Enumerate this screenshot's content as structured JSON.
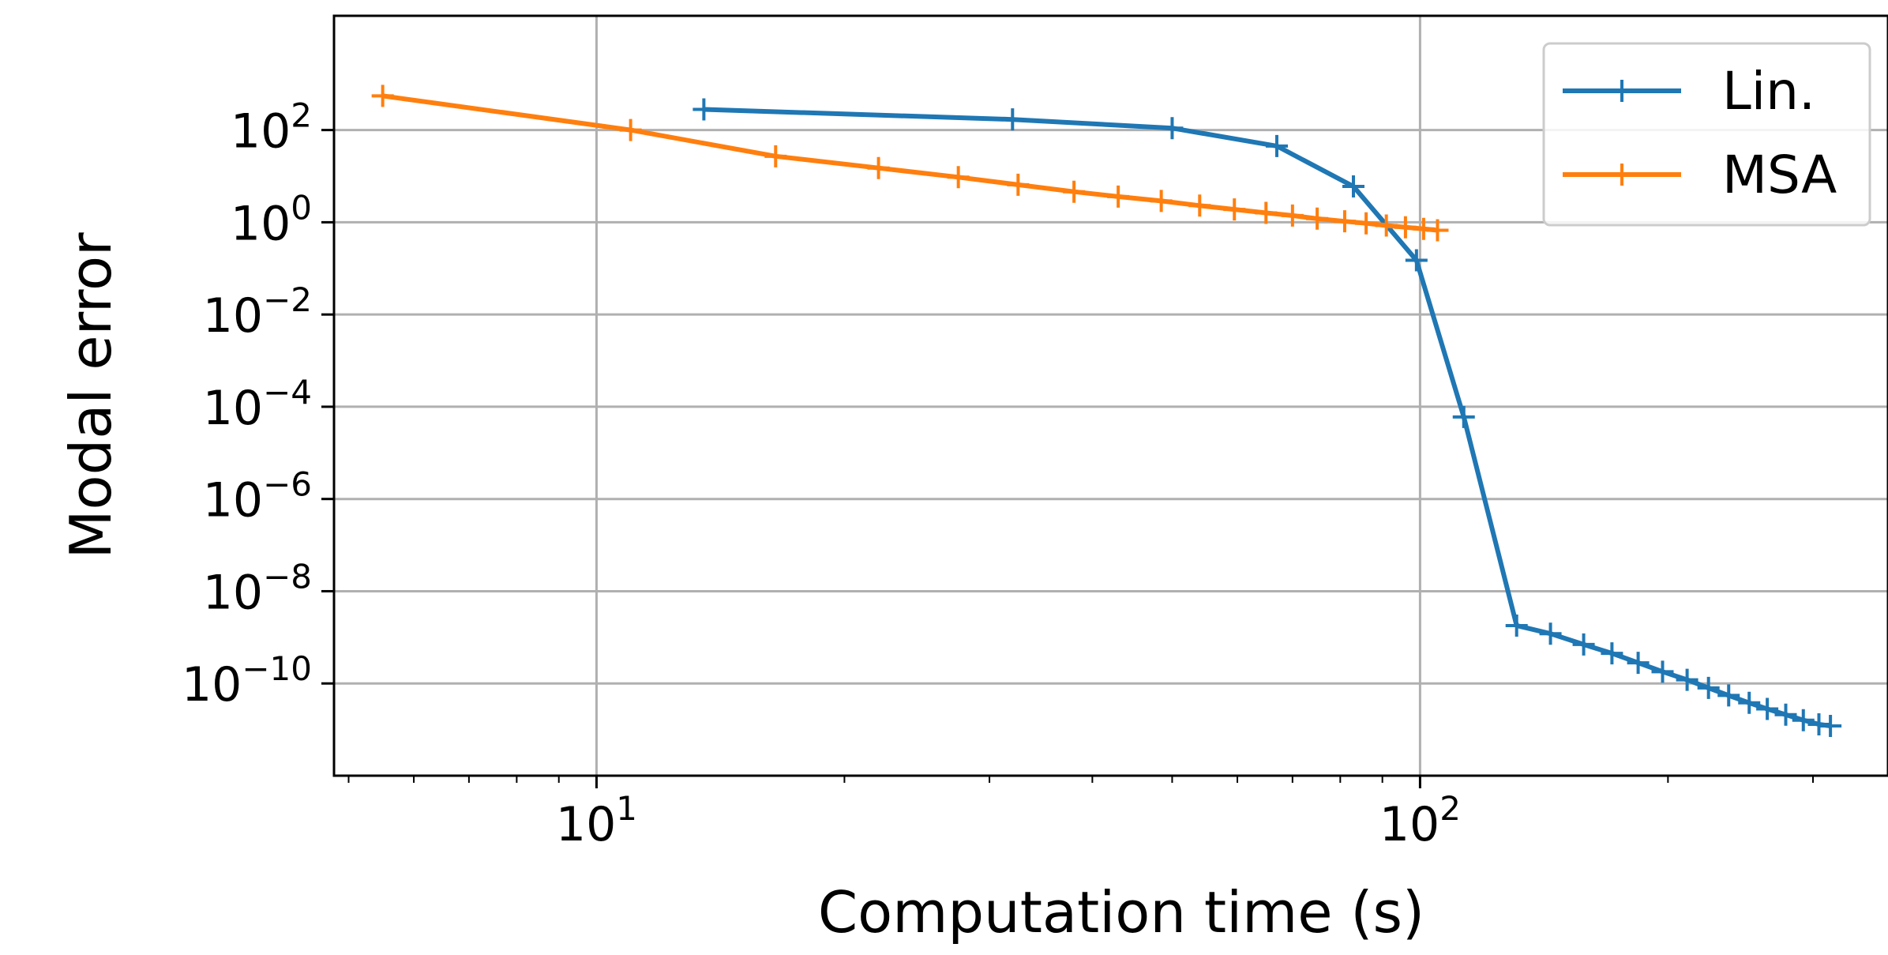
{
  "chart_data": {
    "type": "line",
    "title": "",
    "xlabel": "Computation time (s)",
    "ylabel": "Modal error",
    "xscale": "log",
    "yscale": "log",
    "xlim": [
      4.8,
      370
    ],
    "ylim": [
      1e-12,
      30000
    ],
    "xticks": [
      {
        "base": "10",
        "exp": "1",
        "value": 10
      },
      {
        "base": "10",
        "exp": "2",
        "value": 100
      }
    ],
    "yticks": [
      {
        "base": "10",
        "exp": "2",
        "value": 100
      },
      {
        "base": "10",
        "exp": "0",
        "value": 1
      },
      {
        "base": "10",
        "exp": "−2",
        "value": 0.01
      },
      {
        "base": "10",
        "exp": "−4",
        "value": 0.0001
      },
      {
        "base": "10",
        "exp": "−6",
        "value": 1e-06
      },
      {
        "base": "10",
        "exp": "−8",
        "value": 1e-08
      },
      {
        "base": "10",
        "exp": "−10",
        "value": 1e-10
      }
    ],
    "grid": true,
    "legend_position": "top-right",
    "series": [
      {
        "name": "Lin.",
        "color": "#1f77b4",
        "marker": "plus",
        "x": [
          13.5,
          32,
          50,
          67,
          83,
          99,
          113,
          131,
          144,
          158,
          171,
          184,
          197,
          211,
          224,
          237,
          251,
          264,
          278,
          292,
          305,
          315
        ],
        "y": [
          280,
          170,
          110,
          45,
          6,
          0.15,
          6e-05,
          1.8e-09,
          1.2e-09,
          7e-10,
          4.5e-10,
          2.8e-10,
          1.8e-10,
          1.2e-10,
          8e-11,
          5.5e-11,
          3.8e-11,
          2.8e-11,
          2.1e-11,
          1.6e-11,
          1.3e-11,
          1.2e-11
        ]
      },
      {
        "name": "MSA",
        "color": "#ff7f0e",
        "marker": "plus",
        "x": [
          5.5,
          11,
          16.5,
          22,
          27.5,
          32.5,
          38,
          43,
          48.5,
          54,
          59.5,
          65,
          70,
          75,
          81,
          86,
          91,
          96,
          101,
          105
        ],
        "y": [
          550,
          100,
          27,
          15,
          9.5,
          6.5,
          4.6,
          3.6,
          2.9,
          2.3,
          1.9,
          1.6,
          1.4,
          1.2,
          1.05,
          0.95,
          0.85,
          0.78,
          0.72,
          0.67
        ]
      }
    ]
  }
}
